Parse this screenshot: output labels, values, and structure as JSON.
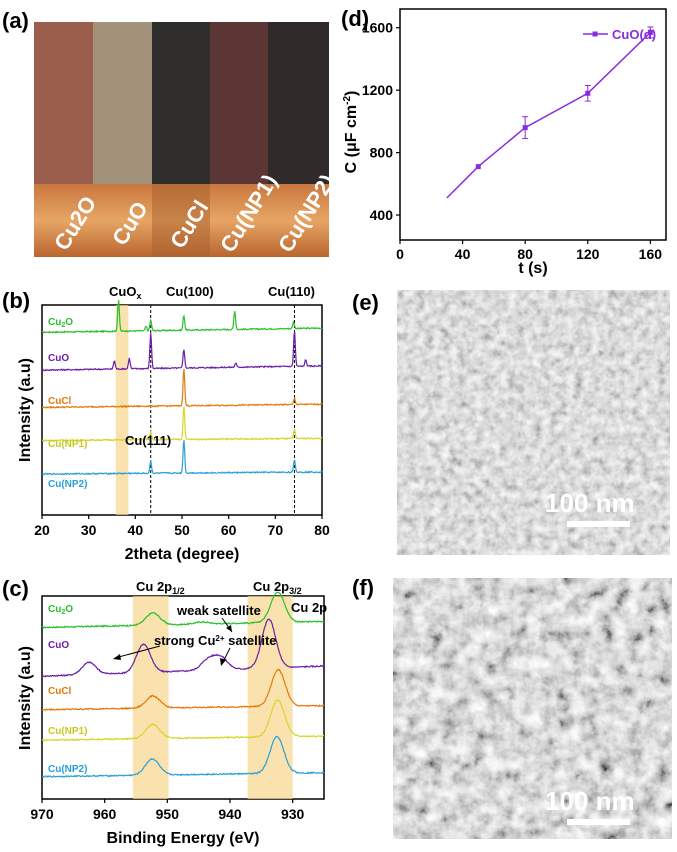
{
  "panels": {
    "a": "(a)",
    "b": "(b)",
    "c": "(c)",
    "d": "(d)",
    "e": "(e)",
    "f": "(f)"
  },
  "colors": {
    "Cu2O": "#2bbf2b",
    "CuO": "#6a1ea8",
    "CuCl": "#e07a10",
    "Cu(NP1)": "#d6d62a",
    "Cu(NP2)": "#2a9fd6",
    "d_line": "#8a2be2"
  },
  "photo": {
    "labels": [
      "Cu2O",
      "CuO",
      "CuCl",
      "Cu(NP1)",
      "Cu(NP2)"
    ],
    "swatches": [
      "#9b5d4c",
      "#a3927a",
      "#2e2d2c",
      "#5b3634",
      "#302a2b"
    ]
  },
  "sem": {
    "e_scale": "100 nm",
    "f_scale": "100 nm"
  },
  "chart_data": [
    {
      "type": "line",
      "id": "xrd",
      "title": "",
      "xlabel": "2theta (degree)",
      "ylabel": "Intensity (a.u)",
      "xlim": [
        20,
        80
      ],
      "xticks": [
        20,
        30,
        40,
        50,
        60,
        70,
        80
      ],
      "series_order": [
        "Cu2O",
        "CuO",
        "CuCl",
        "Cu(NP1)",
        "Cu(NP2)"
      ],
      "baselines": {
        "Cu2O": [
          0.88,
          0.02
        ],
        "CuO": [
          0.7,
          0.02
        ],
        "CuCl": [
          0.52,
          0.015
        ],
        "Cu(NP1)": [
          0.36,
          0.01
        ],
        "Cu(NP2)": [
          0.2,
          0.01
        ]
      },
      "peaks": {
        "Cu2O": [
          [
            36.4,
            0.15
          ],
          [
            42.3,
            0.02
          ],
          [
            43.3,
            0.05
          ],
          [
            50.4,
            0.07
          ],
          [
            61.3,
            0.09
          ],
          [
            73.9,
            0.03
          ]
        ],
        "CuO": [
          [
            35.5,
            0.04
          ],
          [
            38.7,
            0.05
          ],
          [
            43.3,
            0.17
          ],
          [
            50.4,
            0.09
          ],
          [
            61.5,
            0.02
          ],
          [
            74.1,
            0.17
          ],
          [
            76.5,
            0.03
          ]
        ],
        "CuCl": [
          [
            50.4,
            0.18
          ],
          [
            74.1,
            0.03
          ]
        ],
        "Cu(NP1)": [
          [
            43.3,
            0.04
          ],
          [
            50.4,
            0.16
          ],
          [
            74.1,
            0.04
          ]
        ],
        "Cu(NP2)": [
          [
            43.3,
            0.06
          ],
          [
            50.4,
            0.16
          ],
          [
            74.1,
            0.06
          ]
        ]
      },
      "shade_range": [
        35.8,
        38.5
      ],
      "ref_lines": [
        43.3,
        74.1
      ],
      "annotations": {
        "CuOx": "CuOx",
        "Cu100": "Cu(100)",
        "Cu110": "Cu(110)",
        "Cu111": "Cu(111)"
      }
    },
    {
      "type": "line",
      "id": "xps",
      "title": "",
      "xlabel": "Binding Energy (eV)",
      "ylabel": "Intensity (a.u)",
      "xlim": [
        970,
        925
      ],
      "xticks": [
        970,
        960,
        950,
        940,
        930
      ],
      "series_order": [
        "Cu2O",
        "CuO",
        "CuCl",
        "Cu(NP1)",
        "Cu(NP2)"
      ],
      "baselines": {
        "Cu2O": [
          0.86,
          0.03
        ],
        "CuO": [
          0.63,
          0.05
        ],
        "CuCl": [
          0.45,
          0.02
        ],
        "Cu(NP1)": [
          0.3,
          0.02
        ],
        "Cu(NP2)": [
          0.12,
          0.02
        ]
      },
      "peaks": {
        "Cu2O": [
          [
            952.3,
            0.06
          ],
          [
            932.4,
            0.15
          ],
          [
            944.5,
            0.01
          ]
        ],
        "CuO": [
          [
            962.5,
            0.06
          ],
          [
            953.8,
            0.14
          ],
          [
            941.5,
            0.06
          ],
          [
            943.5,
            0.05
          ],
          [
            933.8,
            0.24
          ]
        ],
        "CuCl": [
          [
            952.3,
            0.06
          ],
          [
            932.3,
            0.18
          ]
        ],
        "Cu(NP1)": [
          [
            952.3,
            0.07
          ],
          [
            932.4,
            0.18
          ]
        ],
        "Cu(NP2)": [
          [
            952.4,
            0.08
          ],
          [
            932.5,
            0.18
          ]
        ]
      },
      "shade_ranges": [
        [
          955.5,
          949.8
        ],
        [
          937.2,
          930
        ]
      ],
      "annotations": {
        "cu2p12": "Cu 2p1/2",
        "cu2p32": "Cu 2p3/2",
        "cu2p": "Cu 2p",
        "weak": "weak satellite",
        "strong": "strong Cu2+ satellite"
      }
    },
    {
      "type": "line",
      "id": "capacitance",
      "xlabel": "t (s)",
      "ylabel": "C (μF cm-2)",
      "xlim": [
        0,
        170
      ],
      "ylim": [
        240,
        1720
      ],
      "xticks": [
        0,
        40,
        80,
        120,
        160
      ],
      "yticks": [
        400,
        800,
        1200,
        1600
      ],
      "series": [
        {
          "name": "CuO(d)",
          "x": [
            30,
            50,
            80,
            120,
            160
          ],
          "y": [
            510,
            710,
            960,
            1180,
            1570
          ],
          "err": [
            0,
            0,
            70,
            50,
            35
          ],
          "marker": [
            false,
            true,
            true,
            true,
            true
          ]
        }
      ],
      "legend": "top-right"
    }
  ]
}
